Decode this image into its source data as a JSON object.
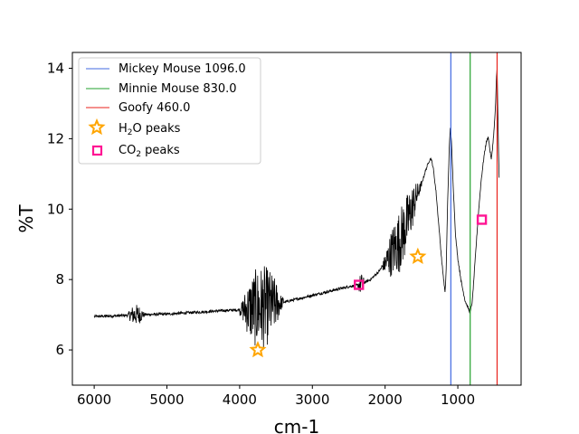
{
  "chart_data": {
    "type": "line",
    "xlabel": "cm-1",
    "ylabel": "%T",
    "xlim": [
      6300,
      130
    ],
    "ylim": [
      5.0,
      14.45
    ],
    "x_ticks": [
      6000,
      5000,
      4000,
      3000,
      2000,
      1000
    ],
    "y_ticks": [
      6,
      8,
      10,
      12,
      14
    ],
    "x_tick_labels": [
      "6000",
      "5000",
      "4000",
      "3000",
      "2000",
      "1000"
    ],
    "y_tick_labels": [
      "6",
      "8",
      "10",
      "12",
      "14"
    ],
    "grid": false,
    "legend_position": "top-left",
    "spectrum": {
      "color": "#000000",
      "base_points": [
        [
          6000,
          6.95
        ],
        [
          5700,
          6.97
        ],
        [
          5400,
          7.0
        ],
        [
          5000,
          7.02
        ],
        [
          4600,
          7.07
        ],
        [
          4200,
          7.12
        ],
        [
          3900,
          7.15
        ],
        [
          3700,
          7.2
        ],
        [
          3500,
          7.3
        ],
        [
          3300,
          7.4
        ],
        [
          3000,
          7.55
        ],
        [
          2700,
          7.7
        ],
        [
          2500,
          7.8
        ],
        [
          2350,
          7.85
        ],
        [
          2200,
          8.0
        ],
        [
          2100,
          8.2
        ],
        [
          2000,
          8.45
        ],
        [
          1900,
          8.8
        ],
        [
          1800,
          9.1
        ],
        [
          1700,
          9.6
        ],
        [
          1600,
          10.2
        ],
        [
          1500,
          10.7
        ],
        [
          1450,
          11.05
        ],
        [
          1400,
          11.35
        ],
        [
          1370,
          11.45
        ],
        [
          1340,
          11.2
        ],
        [
          1300,
          10.5
        ],
        [
          1260,
          9.5
        ],
        [
          1220,
          8.5
        ],
        [
          1190,
          7.9
        ],
        [
          1175,
          7.6
        ],
        [
          1160,
          8.3
        ],
        [
          1140,
          10.2
        ],
        [
          1120,
          11.6
        ],
        [
          1105,
          12.3
        ],
        [
          1090,
          12.0
        ],
        [
          1060,
          10.5
        ],
        [
          1030,
          9.2
        ],
        [
          1000,
          8.6
        ],
        [
          950,
          7.9
        ],
        [
          900,
          7.4
        ],
        [
          860,
          7.2
        ],
        [
          830,
          7.05
        ],
        [
          800,
          7.4
        ],
        [
          760,
          8.6
        ],
        [
          720,
          9.8
        ],
        [
          680,
          10.8
        ],
        [
          640,
          11.5
        ],
        [
          610,
          11.9
        ],
        [
          580,
          12.05
        ],
        [
          560,
          11.7
        ],
        [
          540,
          11.4
        ],
        [
          520,
          11.8
        ],
        [
          500,
          12.3
        ],
        [
          480,
          13.0
        ],
        [
          470,
          13.7
        ],
        [
          460,
          14.0
        ],
        [
          450,
          12.8
        ],
        [
          440,
          11.6
        ],
        [
          430,
          10.7
        ]
      ],
      "noise_bands": [
        [
          5550,
          5300,
          0.3
        ],
        [
          4000,
          3400,
          1.2
        ],
        [
          2380,
          2280,
          0.3
        ],
        [
          2050,
          1500,
          0.9
        ]
      ]
    },
    "vertical_lines": [
      {
        "name": "Mickey Mouse 1096.0",
        "x": 1096.0,
        "color": "#4169e1"
      },
      {
        "name": "Minnie Mouse 830.0",
        "x": 830.0,
        "color": "#22a02c"
      },
      {
        "name": "Goofy 460.0",
        "x": 460.0,
        "color": "#e8221b"
      }
    ],
    "h2o_peaks": {
      "legend_main": "H",
      "legend_sub": "2",
      "legend_tail": "O peaks",
      "color": "#ffa500",
      "points": [
        [
          3750,
          6.0
        ],
        [
          1550,
          8.65
        ]
      ]
    },
    "co2_peaks": {
      "legend_main": "CO",
      "legend_sub": "2",
      "legend_tail": " peaks",
      "color": "#ff1493",
      "points": [
        [
          2360,
          7.85
        ],
        [
          670,
          9.7
        ]
      ]
    }
  }
}
